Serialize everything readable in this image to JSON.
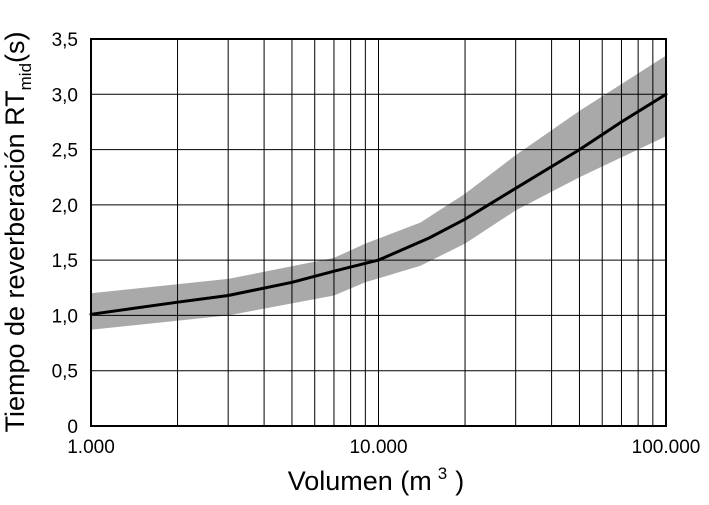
{
  "chart_data": {
    "type": "line",
    "title": "",
    "xscale": "log",
    "xlim": [
      1000,
      100000
    ],
    "ylim": [
      0,
      3.5
    ],
    "grid": true,
    "xlabel": {
      "main": "Volumen (m",
      "sup": "3",
      "close": ")"
    },
    "ylabel": {
      "main": "Tiempo de reverberación RT",
      "sub": "mid",
      "unit": "(s)"
    },
    "xtick_labels": [
      {
        "value": 1000,
        "label": "1.000"
      },
      {
        "value": 10000,
        "label": "10.000"
      },
      {
        "value": 100000,
        "label": "100.000"
      }
    ],
    "ytick_labels": [
      {
        "value": 0,
        "label": "0"
      },
      {
        "value": 0.5,
        "label": "0,5"
      },
      {
        "value": 1.0,
        "label": "1,0"
      },
      {
        "value": 1.5,
        "label": "1,5"
      },
      {
        "value": 2.0,
        "label": "2,0"
      },
      {
        "value": 2.5,
        "label": "2,5"
      },
      {
        "value": 3.0,
        "label": "3,0"
      },
      {
        "value": 3.5,
        "label": "3,5"
      }
    ],
    "series": [
      {
        "x": [
          1000,
          2000,
          3000,
          5000,
          7000,
          10000,
          15000,
          20000,
          30000,
          50000,
          70000,
          100000
        ],
        "y": [
          1.01,
          1.12,
          1.18,
          1.3,
          1.4,
          1.5,
          1.7,
          1.87,
          2.15,
          2.5,
          2.75,
          3.0
        ],
        "color": "#000000"
      }
    ],
    "band": {
      "x": [
        1000,
        3000,
        7000,
        9000,
        14000,
        20000,
        30000,
        50000,
        100000
      ],
      "upper": [
        1.2,
        1.33,
        1.52,
        1.65,
        1.84,
        2.1,
        2.45,
        2.85,
        3.35
      ],
      "lower": [
        0.87,
        1.0,
        1.18,
        1.3,
        1.45,
        1.65,
        1.95,
        2.25,
        2.62
      ],
      "color": "#a9a9a9"
    }
  }
}
